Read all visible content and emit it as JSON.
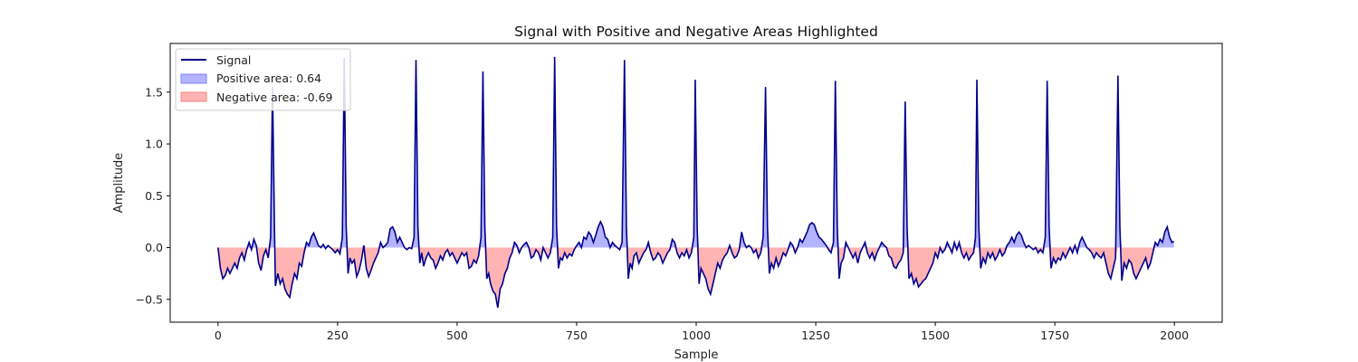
{
  "chart_data": {
    "type": "area",
    "title": "Signal with Positive and Negative Areas Highlighted",
    "xlabel": "Sample",
    "ylabel": "Amplitude",
    "xlim": [
      -100,
      2100
    ],
    "ylim": [
      -0.72,
      1.97
    ],
    "x_ticks": [
      0,
      250,
      500,
      750,
      1000,
      1250,
      1500,
      1750,
      2000
    ],
    "y_ticks": [
      -0.5,
      0.0,
      0.5,
      1.0,
      1.5
    ],
    "legend_position": "top-left",
    "grid": false,
    "colors": {
      "signal": "#00008b",
      "positive_fill": "#b3b3ff",
      "negative_fill": "#ffb3b3"
    },
    "series": [
      {
        "name": "Signal",
        "role": "line"
      },
      {
        "name": "Positive area: 0.64",
        "role": "positive-fill"
      },
      {
        "name": "Negative area: -0.69",
        "role": "negative-fill"
      }
    ],
    "signal_points": [
      [
        0,
        0.0
      ],
      [
        5,
        -0.2
      ],
      [
        10,
        -0.3
      ],
      [
        15,
        -0.27
      ],
      [
        20,
        -0.2
      ],
      [
        25,
        -0.25
      ],
      [
        30,
        -0.2
      ],
      [
        35,
        -0.15
      ],
      [
        40,
        -0.2
      ],
      [
        45,
        -0.1
      ],
      [
        50,
        -0.05
      ],
      [
        55,
        -0.12
      ],
      [
        60,
        -0.02
      ],
      [
        65,
        0.05
      ],
      [
        70,
        -0.02
      ],
      [
        75,
        0.08
      ],
      [
        80,
        0.02
      ],
      [
        85,
        -0.15
      ],
      [
        90,
        -0.22
      ],
      [
        95,
        -0.08
      ],
      [
        100,
        -0.02
      ],
      [
        105,
        -0.1
      ],
      [
        110,
        0.1
      ],
      [
        114,
        1.55
      ],
      [
        118,
        0.2
      ],
      [
        120,
        -0.37
      ],
      [
        125,
        -0.25
      ],
      [
        130,
        -0.35
      ],
      [
        135,
        -0.3
      ],
      [
        140,
        -0.4
      ],
      [
        145,
        -0.45
      ],
      [
        150,
        -0.48
      ],
      [
        155,
        -0.35
      ],
      [
        160,
        -0.25
      ],
      [
        165,
        -0.3
      ],
      [
        170,
        -0.15
      ],
      [
        175,
        -0.18
      ],
      [
        180,
        -0.05
      ],
      [
        185,
        0.05
      ],
      [
        190,
        0.02
      ],
      [
        195,
        0.1
      ],
      [
        200,
        0.14
      ],
      [
        205,
        0.08
      ],
      [
        210,
        0.02
      ],
      [
        215,
        0.0
      ],
      [
        220,
        0.03
      ],
      [
        225,
        -0.01
      ],
      [
        230,
        0.02
      ],
      [
        235,
        0.0
      ],
      [
        240,
        -0.02
      ],
      [
        245,
        -0.05
      ],
      [
        250,
        -0.02
      ],
      [
        255,
        -0.06
      ],
      [
        260,
        0.1
      ],
      [
        264,
        1.83
      ],
      [
        268,
        0.2
      ],
      [
        272,
        -0.25
      ],
      [
        276,
        -0.1
      ],
      [
        280,
        -0.15
      ],
      [
        285,
        -0.12
      ],
      [
        290,
        -0.28
      ],
      [
        295,
        -0.22
      ],
      [
        300,
        -0.12
      ],
      [
        305,
        0.02
      ],
      [
        310,
        -0.2
      ],
      [
        315,
        -0.28
      ],
      [
        320,
        -0.22
      ],
      [
        325,
        -0.15
      ],
      [
        330,
        -0.1
      ],
      [
        335,
        -0.05
      ],
      [
        340,
        0.05
      ],
      [
        345,
        0.0
      ],
      [
        350,
        0.02
      ],
      [
        355,
        0.05
      ],
      [
        360,
        0.18
      ],
      [
        365,
        0.2
      ],
      [
        370,
        0.15
      ],
      [
        375,
        0.05
      ],
      [
        380,
        0.1
      ],
      [
        385,
        0.05
      ],
      [
        390,
        0.0
      ],
      [
        395,
        -0.02
      ],
      [
        400,
        0.0
      ],
      [
        405,
        -0.01
      ],
      [
        410,
        0.1
      ],
      [
        414,
        1.81
      ],
      [
        418,
        0.2
      ],
      [
        422,
        -0.15
      ],
      [
        426,
        -0.05
      ],
      [
        430,
        -0.18
      ],
      [
        435,
        -0.1
      ],
      [
        440,
        -0.05
      ],
      [
        445,
        -0.1
      ],
      [
        450,
        -0.12
      ],
      [
        455,
        -0.2
      ],
      [
        460,
        -0.15
      ],
      [
        465,
        -0.08
      ],
      [
        470,
        -0.12
      ],
      [
        475,
        -0.05
      ],
      [
        480,
        -0.02
      ],
      [
        485,
        -0.08
      ],
      [
        490,
        -0.05
      ],
      [
        495,
        -0.1
      ],
      [
        500,
        -0.15
      ],
      [
        505,
        -0.1
      ],
      [
        510,
        -0.05
      ],
      [
        515,
        -0.08
      ],
      [
        520,
        -0.05
      ],
      [
        525,
        -0.2
      ],
      [
        530,
        -0.18
      ],
      [
        535,
        -0.12
      ],
      [
        540,
        -0.15
      ],
      [
        545,
        -0.08
      ],
      [
        550,
        0.1
      ],
      [
        554,
        1.7
      ],
      [
        558,
        0.2
      ],
      [
        562,
        -0.3
      ],
      [
        566,
        -0.25
      ],
      [
        570,
        -0.35
      ],
      [
        575,
        -0.42
      ],
      [
        580,
        -0.45
      ],
      [
        585,
        -0.58
      ],
      [
        590,
        -0.4
      ],
      [
        595,
        -0.35
      ],
      [
        600,
        -0.25
      ],
      [
        605,
        -0.2
      ],
      [
        610,
        -0.1
      ],
      [
        615,
        -0.05
      ],
      [
        620,
        0.05
      ],
      [
        625,
        0.02
      ],
      [
        630,
        -0.05
      ],
      [
        635,
        0.0
      ],
      [
        640,
        0.03
      ],
      [
        645,
        0.05
      ],
      [
        650,
        0.0
      ],
      [
        655,
        -0.1
      ],
      [
        660,
        -0.08
      ],
      [
        665,
        -0.02
      ],
      [
        670,
        -0.05
      ],
      [
        675,
        -0.12
      ],
      [
        680,
        0.0
      ],
      [
        685,
        -0.05
      ],
      [
        690,
        -0.1
      ],
      [
        695,
        -0.05
      ],
      [
        700,
        0.1
      ],
      [
        704,
        1.84
      ],
      [
        708,
        0.2
      ],
      [
        712,
        -0.2
      ],
      [
        716,
        -0.1
      ],
      [
        720,
        -0.12
      ],
      [
        725,
        -0.05
      ],
      [
        730,
        -0.1
      ],
      [
        735,
        -0.06
      ],
      [
        740,
        -0.08
      ],
      [
        745,
        -0.02
      ],
      [
        750,
        0.02
      ],
      [
        755,
        0.05
      ],
      [
        760,
        0.0
      ],
      [
        765,
        0.1
      ],
      [
        770,
        0.08
      ],
      [
        775,
        0.15
      ],
      [
        780,
        0.12
      ],
      [
        785,
        0.05
      ],
      [
        790,
        0.12
      ],
      [
        795,
        0.2
      ],
      [
        800,
        0.25
      ],
      [
        805,
        0.2
      ],
      [
        810,
        0.1
      ],
      [
        815,
        0.08
      ],
      [
        820,
        0.0
      ],
      [
        825,
        0.05
      ],
      [
        830,
        0.02
      ],
      [
        835,
        0.0
      ],
      [
        840,
        -0.02
      ],
      [
        845,
        0.05
      ],
      [
        850,
        1.81
      ],
      [
        854,
        0.2
      ],
      [
        858,
        -0.3
      ],
      [
        862,
        -0.15
      ],
      [
        866,
        -0.2
      ],
      [
        870,
        -0.08
      ],
      [
        875,
        -0.05
      ],
      [
        880,
        -0.15
      ],
      [
        885,
        -0.1
      ],
      [
        890,
        -0.05
      ],
      [
        895,
        -0.02
      ],
      [
        900,
        0.05
      ],
      [
        905,
        -0.05
      ],
      [
        910,
        -0.12
      ],
      [
        915,
        -0.1
      ],
      [
        920,
        -0.05
      ],
      [
        925,
        -0.08
      ],
      [
        930,
        -0.15
      ],
      [
        935,
        -0.1
      ],
      [
        940,
        -0.05
      ],
      [
        945,
        -0.02
      ],
      [
        950,
        0.08
      ],
      [
        955,
        0.05
      ],
      [
        960,
        -0.05
      ],
      [
        965,
        -0.1
      ],
      [
        970,
        -0.05
      ],
      [
        975,
        -0.08
      ],
      [
        980,
        -0.02
      ],
      [
        985,
        -0.1
      ],
      [
        990,
        -0.05
      ],
      [
        995,
        0.1
      ],
      [
        998,
        1.62
      ],
      [
        1002,
        0.2
      ],
      [
        1006,
        -0.35
      ],
      [
        1010,
        -0.2
      ],
      [
        1015,
        -0.25
      ],
      [
        1020,
        -0.3
      ],
      [
        1025,
        -0.4
      ],
      [
        1030,
        -0.45
      ],
      [
        1035,
        -0.35
      ],
      [
        1040,
        -0.25
      ],
      [
        1045,
        -0.15
      ],
      [
        1050,
        -0.2
      ],
      [
        1055,
        -0.12
      ],
      [
        1060,
        -0.08
      ],
      [
        1065,
        -0.05
      ],
      [
        1070,
        0.02
      ],
      [
        1075,
        -0.05
      ],
      [
        1080,
        -0.1
      ],
      [
        1085,
        -0.08
      ],
      [
        1090,
        -0.02
      ],
      [
        1095,
        0.15
      ],
      [
        1100,
        0.05
      ],
      [
        1105,
        0.0
      ],
      [
        1110,
        0.02
      ],
      [
        1115,
        0.0
      ],
      [
        1120,
        -0.05
      ],
      [
        1125,
        -0.02
      ],
      [
        1130,
        -0.1
      ],
      [
        1135,
        -0.05
      ],
      [
        1140,
        0.1
      ],
      [
        1145,
        1.55
      ],
      [
        1149,
        0.2
      ],
      [
        1153,
        -0.25
      ],
      [
        1157,
        -0.15
      ],
      [
        1162,
        -0.2
      ],
      [
        1167,
        -0.1
      ],
      [
        1172,
        -0.18
      ],
      [
        1177,
        -0.12
      ],
      [
        1182,
        -0.05
      ],
      [
        1187,
        -0.08
      ],
      [
        1192,
        -0.02
      ],
      [
        1197,
        0.05
      ],
      [
        1202,
        0.02
      ],
      [
        1207,
        -0.05
      ],
      [
        1212,
        0.0
      ],
      [
        1217,
        0.08
      ],
      [
        1222,
        0.05
      ],
      [
        1227,
        0.1
      ],
      [
        1232,
        0.15
      ],
      [
        1237,
        0.22
      ],
      [
        1242,
        0.24
      ],
      [
        1247,
        0.22
      ],
      [
        1252,
        0.15
      ],
      [
        1257,
        0.1
      ],
      [
        1262,
        0.08
      ],
      [
        1267,
        0.05
      ],
      [
        1272,
        0.02
      ],
      [
        1277,
        -0.02
      ],
      [
        1282,
        -0.05
      ],
      [
        1287,
        0.05
      ],
      [
        1291,
        1.61
      ],
      [
        1295,
        0.2
      ],
      [
        1299,
        -0.3
      ],
      [
        1303,
        -0.15
      ],
      [
        1308,
        -0.1
      ],
      [
        1313,
        0.05
      ],
      [
        1318,
        0.0
      ],
      [
        1323,
        -0.05
      ],
      [
        1328,
        -0.1
      ],
      [
        1333,
        -0.05
      ],
      [
        1338,
        -0.15
      ],
      [
        1343,
        -0.05
      ],
      [
        1348,
        0.0
      ],
      [
        1353,
        0.05
      ],
      [
        1358,
        -0.05
      ],
      [
        1363,
        -0.1
      ],
      [
        1368,
        -0.05
      ],
      [
        1373,
        -0.12
      ],
      [
        1378,
        -0.05
      ],
      [
        1383,
        0.0
      ],
      [
        1388,
        0.05
      ],
      [
        1393,
        0.02
      ],
      [
        1398,
        0.0
      ],
      [
        1403,
        -0.08
      ],
      [
        1408,
        -0.1
      ],
      [
        1413,
        -0.18
      ],
      [
        1418,
        -0.2
      ],
      [
        1423,
        -0.15
      ],
      [
        1428,
        -0.12
      ],
      [
        1433,
        -0.05
      ],
      [
        1437,
        1.41
      ],
      [
        1441,
        0.2
      ],
      [
        1445,
        -0.3
      ],
      [
        1450,
        -0.25
      ],
      [
        1455,
        -0.35
      ],
      [
        1460,
        -0.3
      ],
      [
        1465,
        -0.38
      ],
      [
        1470,
        -0.35
      ],
      [
        1475,
        -0.32
      ],
      [
        1480,
        -0.3
      ],
      [
        1485,
        -0.25
      ],
      [
        1490,
        -0.2
      ],
      [
        1495,
        -0.15
      ],
      [
        1500,
        -0.05
      ],
      [
        1505,
        -0.1
      ],
      [
        1510,
        0.0
      ],
      [
        1515,
        -0.05
      ],
      [
        1520,
        -0.02
      ],
      [
        1525,
        0.05
      ],
      [
        1530,
        0.0
      ],
      [
        1535,
        -0.05
      ],
      [
        1540,
        0.05
      ],
      [
        1545,
        -0.02
      ],
      [
        1550,
        0.05
      ],
      [
        1555,
        -0.05
      ],
      [
        1560,
        -0.1
      ],
      [
        1565,
        -0.05
      ],
      [
        1570,
        -0.12
      ],
      [
        1575,
        -0.08
      ],
      [
        1580,
        -0.05
      ],
      [
        1584,
        0.1
      ],
      [
        1587,
        1.62
      ],
      [
        1591,
        0.2
      ],
      [
        1595,
        -0.2
      ],
      [
        1600,
        -0.1
      ],
      [
        1605,
        -0.15
      ],
      [
        1610,
        -0.05
      ],
      [
        1615,
        -0.1
      ],
      [
        1620,
        -0.05
      ],
      [
        1625,
        -0.12
      ],
      [
        1630,
        -0.08
      ],
      [
        1635,
        -0.02
      ],
      [
        1640,
        -0.08
      ],
      [
        1645,
        -0.05
      ],
      [
        1650,
        0.02
      ],
      [
        1655,
        0.05
      ],
      [
        1660,
        0.1
      ],
      [
        1665,
        0.05
      ],
      [
        1670,
        0.12
      ],
      [
        1675,
        0.15
      ],
      [
        1680,
        0.12
      ],
      [
        1685,
        0.05
      ],
      [
        1690,
        0.0
      ],
      [
        1695,
        0.02
      ],
      [
        1700,
        0.0
      ],
      [
        1705,
        -0.02
      ],
      [
        1710,
        0.0
      ],
      [
        1715,
        -0.05
      ],
      [
        1720,
        -0.02
      ],
      [
        1725,
        -0.05
      ],
      [
        1730,
        0.1
      ],
      [
        1734,
        1.61
      ],
      [
        1738,
        0.2
      ],
      [
        1742,
        -0.2
      ],
      [
        1747,
        -0.1
      ],
      [
        1752,
        -0.15
      ],
      [
        1757,
        -0.1
      ],
      [
        1762,
        -0.12
      ],
      [
        1767,
        -0.05
      ],
      [
        1772,
        -0.1
      ],
      [
        1777,
        -0.05
      ],
      [
        1782,
        0.0
      ],
      [
        1787,
        -0.05
      ],
      [
        1792,
        0.02
      ],
      [
        1797,
        -0.05
      ],
      [
        1802,
        0.05
      ],
      [
        1807,
        0.1
      ],
      [
        1812,
        0.05
      ],
      [
        1817,
        0.0
      ],
      [
        1822,
        -0.02
      ],
      [
        1827,
        -0.05
      ],
      [
        1832,
        -0.1
      ],
      [
        1837,
        -0.05
      ],
      [
        1842,
        -0.08
      ],
      [
        1847,
        -0.1
      ],
      [
        1852,
        -0.05
      ],
      [
        1857,
        -0.15
      ],
      [
        1862,
        -0.25
      ],
      [
        1867,
        -0.3
      ],
      [
        1872,
        -0.2
      ],
      [
        1877,
        -0.1
      ],
      [
        1882,
        1.66
      ],
      [
        1886,
        0.2
      ],
      [
        1890,
        -0.32
      ],
      [
        1895,
        -0.15
      ],
      [
        1900,
        -0.2
      ],
      [
        1905,
        -0.12
      ],
      [
        1910,
        -0.15
      ],
      [
        1915,
        -0.25
      ],
      [
        1920,
        -0.3
      ],
      [
        1925,
        -0.25
      ],
      [
        1930,
        -0.2
      ],
      [
        1935,
        -0.15
      ],
      [
        1940,
        -0.1
      ],
      [
        1945,
        -0.2
      ],
      [
        1950,
        -0.15
      ],
      [
        1955,
        -0.05
      ],
      [
        1960,
        0.05
      ],
      [
        1965,
        0.02
      ],
      [
        1970,
        0.08
      ],
      [
        1975,
        0.05
      ],
      [
        1980,
        0.15
      ],
      [
        1985,
        0.2
      ],
      [
        1990,
        0.1
      ],
      [
        1995,
        0.05
      ],
      [
        1999,
        0.06
      ]
    ]
  }
}
